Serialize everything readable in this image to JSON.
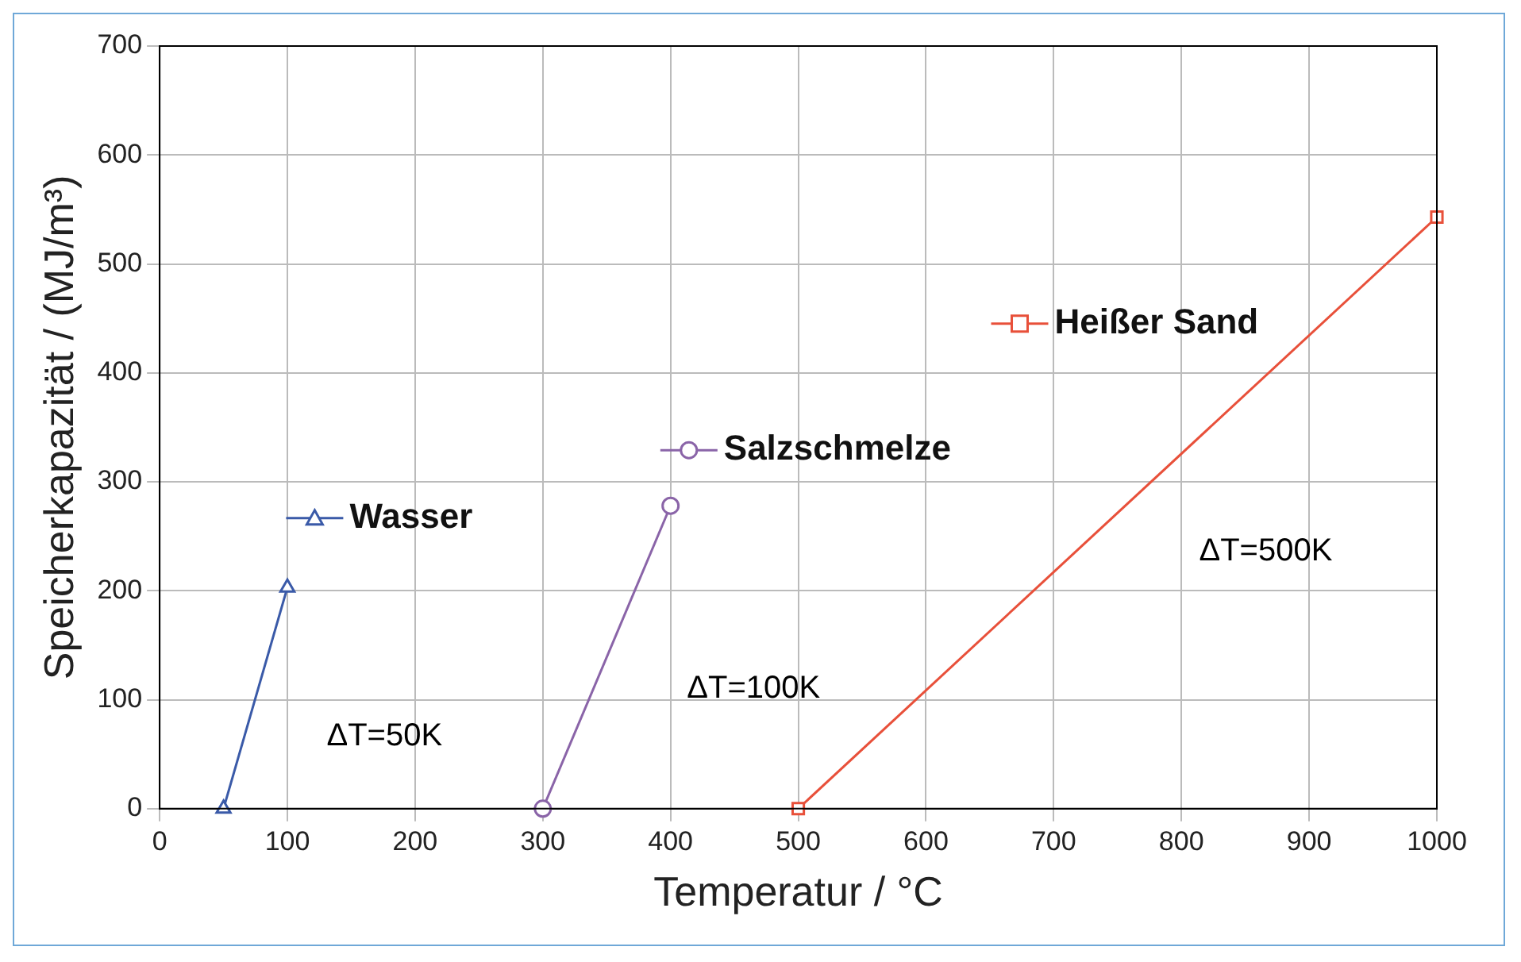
{
  "chart_data": {
    "type": "line",
    "xlabel": "Temperatur / °C",
    "ylabel": "Speicherkapazität / (MJ/m³)",
    "xlim": [
      0,
      1000
    ],
    "xticks": [
      0,
      100,
      200,
      300,
      400,
      500,
      600,
      700,
      800,
      900,
      1000
    ],
    "ylim": [
      0,
      700
    ],
    "yticks": [
      0,
      100,
      200,
      300,
      400,
      500,
      600,
      700
    ],
    "grid": true,
    "legend": "top",
    "series": [
      {
        "name": "Wasser",
        "color": "#3a5aa8",
        "marker": "triangle",
        "x": [
          50,
          100
        ],
        "values": [
          0,
          203
        ]
      },
      {
        "name": "Salzschmelze",
        "color": "#8a64a8",
        "marker": "circle",
        "x": [
          300,
          400
        ],
        "values": [
          0,
          278
        ]
      },
      {
        "name": "Heißer Sand",
        "color": "#e8503a",
        "marker": "square",
        "x": [
          500,
          1000
        ],
        "values": [
          0,
          543
        ]
      }
    ],
    "annotations": [
      "ΔT=50K",
      "ΔT=100K",
      "ΔT=500K"
    ]
  }
}
